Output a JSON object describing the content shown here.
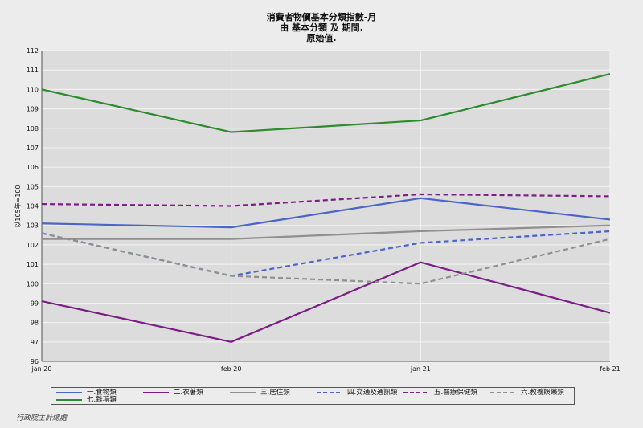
{
  "title_lines": [
    "消費者物價基本分類指數-月",
    "由 基本分類 及 期間.",
    "原始值."
  ],
  "source": "行政院主計總處",
  "chart_data": {
    "type": "line",
    "title": "消費者物價基本分類指數-月",
    "subtitle": "由 基本分類 及 期間. 原始值.",
    "x": [
      "jan 20",
      "feb 20",
      "jan 21",
      "feb 21"
    ],
    "xlabel": "",
    "ylabel": "以105年=100",
    "ylim": [
      96,
      112
    ],
    "yticks": [
      96,
      97,
      98,
      99,
      100,
      101,
      102,
      103,
      104,
      105,
      106,
      107,
      108,
      109,
      110,
      111,
      112
    ],
    "grid": true,
    "legend_position": "bottom",
    "series": [
      {
        "name": "一.食物類",
        "values": [
          103.1,
          102.9,
          104.4,
          103.3
        ],
        "color": "#4a64c8",
        "dash": "solid"
      },
      {
        "name": "二.衣著類",
        "values": [
          99.1,
          97.0,
          101.1,
          98.5
        ],
        "color": "#7b1f86",
        "dash": "solid"
      },
      {
        "name": "三.居住類",
        "values": [
          102.3,
          102.3,
          102.7,
          103.0
        ],
        "color": "#8f8f8f",
        "dash": "solid"
      },
      {
        "name": "四.交通及通訊類",
        "values": [
          102.6,
          100.4,
          102.1,
          102.7
        ],
        "color": "#4a64c8",
        "dash": "dashed"
      },
      {
        "name": "五.醫療保健類",
        "values": [
          104.1,
          104.0,
          104.6,
          104.5
        ],
        "color": "#7b1f86",
        "dash": "dashed"
      },
      {
        "name": "六.教養娛樂類",
        "values": [
          102.6,
          100.4,
          100.0,
          102.3
        ],
        "color": "#8f8f8f",
        "dash": "dashed"
      },
      {
        "name": "七.雜項類",
        "values": [
          110.0,
          107.8,
          108.4,
          110.8
        ],
        "color": "#2e8b2e",
        "dash": "solid"
      }
    ]
  }
}
